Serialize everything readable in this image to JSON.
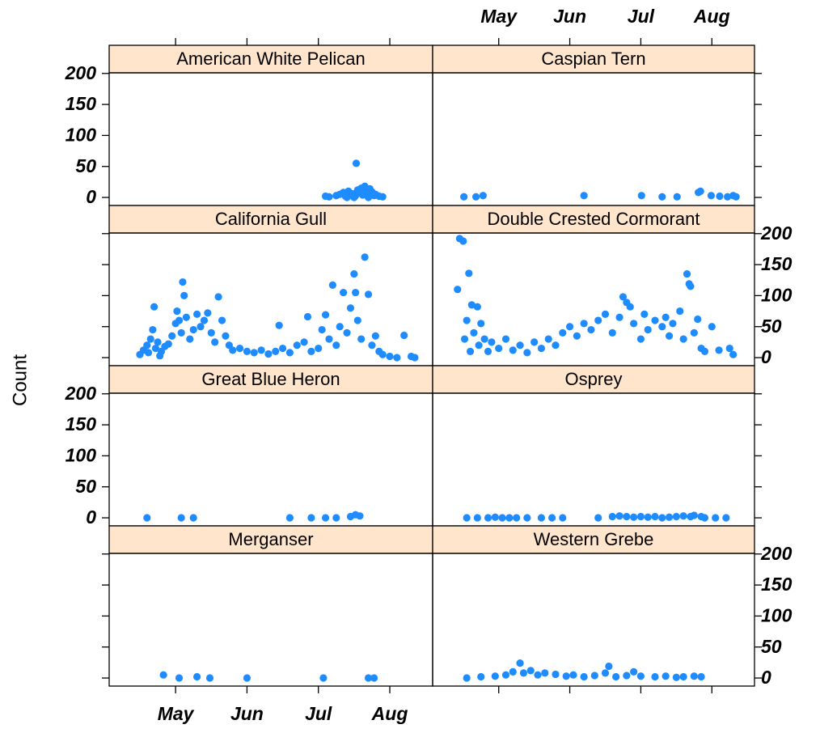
{
  "ylabel": "Count",
  "chart_data": [
    {
      "type": "scatter",
      "title": "American White Pelican",
      "color": "#1e8cff",
      "strip_color": "#ffe5cc",
      "xlim": [
        4.07,
        8.6
      ],
      "xticks": [
        {
          "value": 5,
          "label": "May"
        },
        {
          "value": 6,
          "label": "Jun"
        },
        {
          "value": 7,
          "label": "Jul"
        },
        {
          "value": 8,
          "label": "Aug"
        }
      ],
      "ylim": [
        -13,
        201
      ],
      "yticks": [
        0,
        50,
        100,
        150,
        200
      ],
      "x": [
        7.1,
        7.15,
        7.25,
        7.3,
        7.35,
        7.38,
        7.42,
        7.45,
        7.48,
        7.52,
        7.53,
        7.55,
        7.58,
        7.6,
        7.62,
        7.65,
        7.68,
        7.7,
        7.72,
        7.75,
        7.78,
        7.8,
        7.85,
        7.9,
        7.5,
        7.4,
        7.7
      ],
      "values": [
        2,
        1,
        3,
        5,
        8,
        2,
        10,
        4,
        6,
        3,
        55,
        12,
        8,
        15,
        4,
        18,
        10,
        6,
        14,
        9,
        3,
        5,
        2,
        1,
        0,
        0,
        0
      ]
    },
    {
      "type": "scatter",
      "title": "Caspian Tern",
      "color": "#1e8cff",
      "strip_color": "#ffe5cc",
      "xlim": [
        4.07,
        8.6
      ],
      "xticks": [
        {
          "value": 5,
          "label": "May"
        },
        {
          "value": 6,
          "label": "Jun"
        },
        {
          "value": 7,
          "label": "Jul"
        },
        {
          "value": 8,
          "label": "Aug"
        }
      ],
      "ylim": [
        -13,
        201
      ],
      "yticks": [
        0,
        50,
        100,
        150,
        200
      ],
      "x": [
        4.51,
        4.68,
        4.78,
        6.2,
        7.01,
        7.3,
        7.51,
        7.81,
        7.84,
        7.99,
        8.11,
        8.22,
        8.3,
        8.34
      ],
      "values": [
        1,
        1,
        3,
        3,
        3,
        1,
        1,
        8,
        10,
        3,
        2,
        1,
        3,
        1
      ]
    },
    {
      "type": "scatter",
      "title": "California Gull",
      "color": "#1e8cff",
      "strip_color": "#ffe5cc",
      "xlim": [
        4.07,
        8.6
      ],
      "xticks": [
        {
          "value": 5,
          "label": "May"
        },
        {
          "value": 6,
          "label": "Jun"
        },
        {
          "value": 7,
          "label": "Jul"
        },
        {
          "value": 8,
          "label": "Aug"
        }
      ],
      "ylim": [
        -13,
        201
      ],
      "yticks": [
        0,
        50,
        100,
        150,
        200
      ],
      "x": [
        4.5,
        4.55,
        4.6,
        4.62,
        4.65,
        4.68,
        4.7,
        4.72,
        4.75,
        4.78,
        4.8,
        4.85,
        4.9,
        4.95,
        5.0,
        5.02,
        5.05,
        5.08,
        5.1,
        5.12,
        5.15,
        5.2,
        5.25,
        5.3,
        5.35,
        5.4,
        5.45,
        5.5,
        5.55,
        5.6,
        5.65,
        5.7,
        5.75,
        5.8,
        5.9,
        6.0,
        6.1,
        6.2,
        6.3,
        6.4,
        6.45,
        6.5,
        6.6,
        6.7,
        6.8,
        6.85,
        6.9,
        7.0,
        7.05,
        7.1,
        7.15,
        7.2,
        7.25,
        7.3,
        7.35,
        7.4,
        7.45,
        7.5,
        7.52,
        7.55,
        7.6,
        7.65,
        7.7,
        7.75,
        7.8,
        7.85,
        7.9,
        8.0,
        8.1,
        8.2,
        8.3,
        8.35
      ],
      "values": [
        5,
        12,
        20,
        8,
        30,
        45,
        82,
        15,
        25,
        3,
        10,
        18,
        22,
        35,
        55,
        75,
        60,
        40,
        122,
        100,
        65,
        30,
        45,
        70,
        50,
        60,
        72,
        40,
        25,
        98,
        60,
        35,
        20,
        12,
        15,
        10,
        8,
        12,
        6,
        10,
        52,
        15,
        8,
        20,
        25,
        66,
        10,
        15,
        45,
        69,
        30,
        117,
        20,
        50,
        105,
        40,
        80,
        135,
        105,
        60,
        30,
        162,
        102,
        20,
        35,
        10,
        5,
        2,
        0,
        36,
        2,
        0
      ]
    },
    {
      "type": "scatter",
      "title": "Double Crested Cormorant",
      "color": "#1e8cff",
      "strip_color": "#ffe5cc",
      "xlim": [
        4.07,
        8.6
      ],
      "xticks": [
        {
          "value": 5,
          "label": "May"
        },
        {
          "value": 6,
          "label": "Jun"
        },
        {
          "value": 7,
          "label": "Jul"
        },
        {
          "value": 8,
          "label": "Aug"
        }
      ],
      "ylim": [
        -13,
        201
      ],
      "yticks": [
        0,
        50,
        100,
        150,
        200
      ],
      "x": [
        4.42,
        4.45,
        4.5,
        4.52,
        4.55,
        4.58,
        4.6,
        4.62,
        4.65,
        4.7,
        4.72,
        4.75,
        4.8,
        4.85,
        4.9,
        5.0,
        5.1,
        5.2,
        5.3,
        5.4,
        5.5,
        5.6,
        5.7,
        5.8,
        5.9,
        6.0,
        6.1,
        6.2,
        6.3,
        6.4,
        6.5,
        6.6,
        6.7,
        6.75,
        6.8,
        6.85,
        6.9,
        7.0,
        7.05,
        7.1,
        7.2,
        7.3,
        7.35,
        7.4,
        7.45,
        7.55,
        7.6,
        7.65,
        7.68,
        7.7,
        7.75,
        7.8,
        7.85,
        7.9,
        8.0,
        8.1,
        8.25,
        8.3
      ],
      "values": [
        110,
        192,
        188,
        30,
        60,
        136,
        10,
        85,
        40,
        82,
        20,
        55,
        30,
        10,
        25,
        15,
        30,
        12,
        20,
        8,
        25,
        15,
        30,
        20,
        40,
        50,
        35,
        55,
        45,
        60,
        70,
        40,
        65,
        98,
        89,
        82,
        55,
        30,
        70,
        45,
        60,
        50,
        65,
        35,
        55,
        75,
        30,
        135,
        119,
        115,
        40,
        62,
        15,
        10,
        50,
        12,
        15,
        5
      ]
    },
    {
      "type": "scatter",
      "title": "Great Blue Heron",
      "color": "#1e8cff",
      "strip_color": "#ffe5cc",
      "xlim": [
        4.07,
        8.6
      ],
      "xticks": [
        {
          "value": 5,
          "label": "May"
        },
        {
          "value": 6,
          "label": "Jun"
        },
        {
          "value": 7,
          "label": "Jul"
        },
        {
          "value": 8,
          "label": "Aug"
        }
      ],
      "ylim": [
        -13,
        201
      ],
      "yticks": [
        0,
        50,
        100,
        150,
        200
      ],
      "x": [
        4.6,
        5.08,
        5.25,
        6.6,
        6.9,
        7.1,
        7.25,
        7.45,
        7.52,
        7.58
      ],
      "values": [
        0,
        0,
        0,
        0,
        0,
        0,
        0,
        2,
        5,
        3
      ]
    },
    {
      "type": "scatter",
      "title": "Osprey",
      "color": "#1e8cff",
      "strip_color": "#ffe5cc",
      "xlim": [
        4.07,
        8.6
      ],
      "xticks": [
        {
          "value": 5,
          "label": "May"
        },
        {
          "value": 6,
          "label": "Jun"
        },
        {
          "value": 7,
          "label": "Jul"
        },
        {
          "value": 8,
          "label": "Aug"
        }
      ],
      "ylim": [
        -13,
        201
      ],
      "yticks": [
        0,
        50,
        100,
        150,
        200
      ],
      "x": [
        4.55,
        4.7,
        4.85,
        4.95,
        5.05,
        5.15,
        5.25,
        5.4,
        5.6,
        5.75,
        5.9,
        6.4,
        6.6,
        6.7,
        6.8,
        6.9,
        7.0,
        7.1,
        7.2,
        7.3,
        7.4,
        7.5,
        7.6,
        7.7,
        7.75,
        7.85,
        7.9,
        8.05,
        8.2
      ],
      "values": [
        0,
        0,
        0,
        1,
        0,
        0,
        0,
        0,
        0,
        0,
        0,
        0,
        2,
        3,
        2,
        1,
        2,
        1,
        2,
        0,
        1,
        2,
        3,
        2,
        4,
        2,
        0,
        0,
        0
      ]
    },
    {
      "type": "scatter",
      "title": "Merganser",
      "color": "#1e8cff",
      "strip_color": "#ffe5cc",
      "xlim": [
        4.07,
        8.6
      ],
      "xticks": [
        {
          "value": 5,
          "label": "May"
        },
        {
          "value": 6,
          "label": "Jun"
        },
        {
          "value": 7,
          "label": "Jul"
        },
        {
          "value": 8,
          "label": "Aug"
        }
      ],
      "ylim": [
        -13,
        201
      ],
      "yticks": [
        0,
        50,
        100,
        150,
        200
      ],
      "x": [
        4.83,
        5.05,
        5.3,
        5.48,
        6.0,
        7.07,
        7.7,
        7.78
      ],
      "values": [
        5,
        0,
        2,
        0,
        0,
        0,
        0,
        0
      ]
    },
    {
      "type": "scatter",
      "title": "Western Grebe",
      "color": "#1e8cff",
      "strip_color": "#ffe5cc",
      "xlim": [
        4.07,
        8.6
      ],
      "xticks": [
        {
          "value": 5,
          "label": "May"
        },
        {
          "value": 6,
          "label": "Jun"
        },
        {
          "value": 7,
          "label": "Jul"
        },
        {
          "value": 8,
          "label": "Aug"
        }
      ],
      "ylim": [
        -13,
        201
      ],
      "yticks": [
        0,
        50,
        100,
        150,
        200
      ],
      "x": [
        4.55,
        4.75,
        4.95,
        5.1,
        5.2,
        5.3,
        5.35,
        5.45,
        5.55,
        5.65,
        5.8,
        5.95,
        6.05,
        6.2,
        6.35,
        6.5,
        6.55,
        6.65,
        6.8,
        6.9,
        7.0,
        7.2,
        7.35,
        7.5,
        7.6,
        7.75,
        7.85
      ],
      "values": [
        0,
        2,
        3,
        5,
        10,
        24,
        8,
        12,
        5,
        8,
        6,
        3,
        5,
        2,
        4,
        8,
        19,
        2,
        4,
        10,
        3,
        2,
        3,
        1,
        2,
        3,
        2
      ]
    }
  ]
}
